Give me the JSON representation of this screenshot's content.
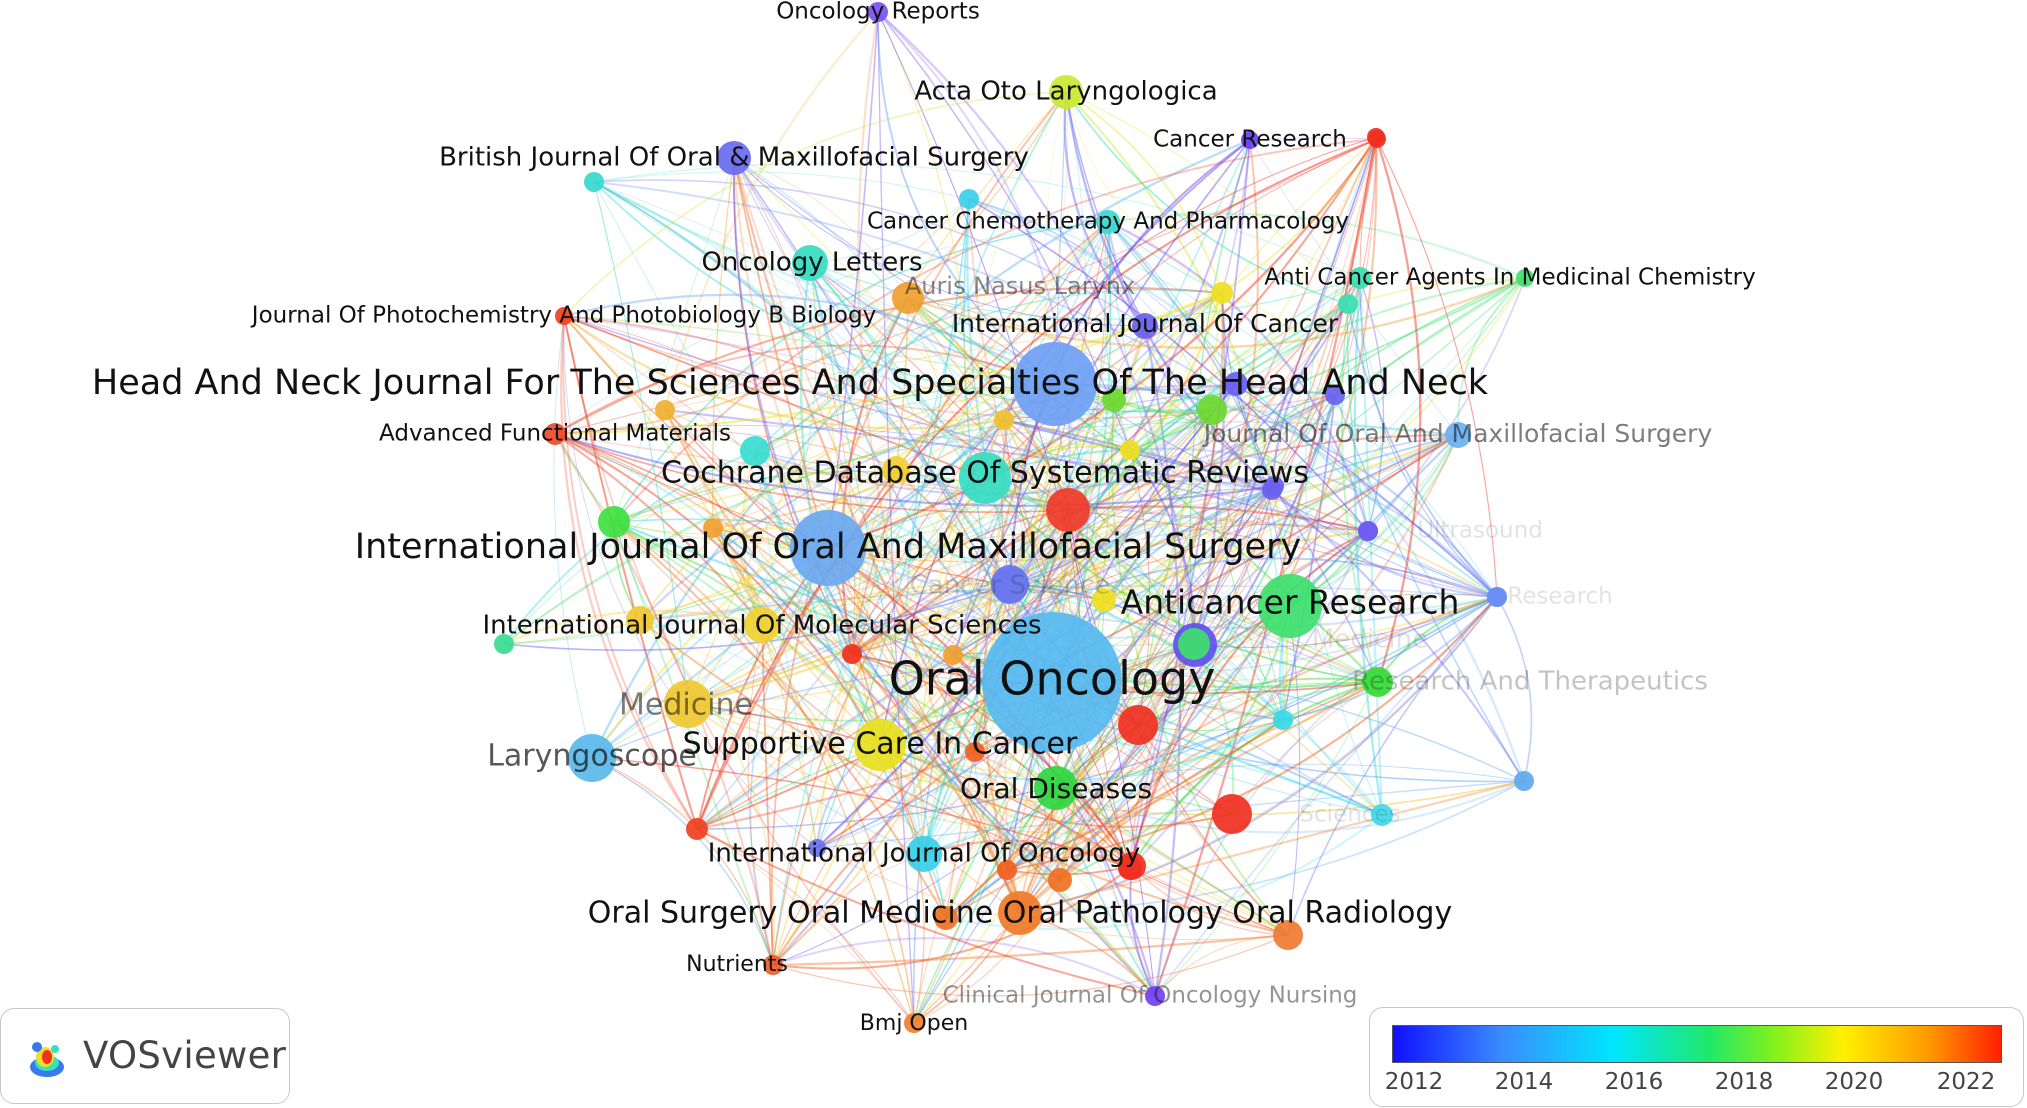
{
  "software": "VOSviewer",
  "color_scale": {
    "ticks": [
      "2012",
      "2014",
      "2016",
      "2018",
      "2020",
      "2022"
    ],
    "colors": [
      "#1010ff",
      "#3a8cff",
      "#00e5ff",
      "#20e86a",
      "#7cf020",
      "#fff000",
      "#ff9a00",
      "#ff2000"
    ]
  },
  "nodes": [
    {
      "label": "Oral Oncology",
      "weight": 3,
      "color": "#56b8f0",
      "year": 2014
    },
    {
      "label": "Head And Neck Journal For The Sciences And Specialties Of The Head And Neck",
      "weight": 3,
      "color": "#6ea0f4",
      "year": 2013
    },
    {
      "label": "International Journal Of Oral And Maxillofacial Surgery",
      "weight": 3,
      "color": "#6aa8f0",
      "year": 2013
    },
    {
      "label": "Anticancer Research",
      "weight": 3,
      "color": "#3ee06e",
      "year": 2017
    },
    {
      "label": "Cochrane Database Of Systematic Reviews",
      "weight": 2,
      "color": "#36dcc2",
      "year": 2016
    },
    {
      "label": "Oral Surgery Oral Medicine Oral Pathology Oral Radiology",
      "weight": 2,
      "color": "#f07a28",
      "year": 2021
    },
    {
      "label": "Supportive Care In Cancer",
      "weight": 2,
      "color": "#e8e020",
      "year": 2019
    },
    {
      "label": "Oral Diseases",
      "weight": 2,
      "color": "#30d640",
      "year": 2017
    },
    {
      "label": "Laryngoscope",
      "weight": 2,
      "color": "#5ab8ec",
      "year": 2014
    },
    {
      "label": "Medicine",
      "weight": 2,
      "color": "#f0c830",
      "year": 2020
    },
    {
      "label": "International Journal Of Molecular Sciences",
      "weight": 2,
      "color": "#f0d030",
      "year": 2020
    },
    {
      "label": "International Journal Of Oncology",
      "weight": 1,
      "color": "#36d0e8",
      "year": 2015
    },
    {
      "label": "Oncology Letters",
      "weight": 1,
      "color": "#36dcc0",
      "year": 2016
    },
    {
      "label": "British Journal Of Oral & Maxillofacial Surgery",
      "weight": 1,
      "color": "#6a6af0",
      "year": 2012
    },
    {
      "label": "Acta Oto Laryngologica",
      "weight": 1,
      "color": "#cbe830",
      "year": 2019
    },
    {
      "label": "Oncology Reports",
      "weight": 1,
      "color": "#7a50f0",
      "year": 2012
    },
    {
      "label": "Cancer Research",
      "weight": 1,
      "color": "#6a40ee",
      "year": 2012
    },
    {
      "label": "Cancer Chemotherapy And Pharmacology",
      "weight": 1,
      "color": "#38d8d0",
      "year": 2015
    },
    {
      "label": "Anti Cancer Agents In Medicinal Chemistry",
      "weight": 1,
      "color": "#38e0b0",
      "year": 2016
    },
    {
      "label": "Journal Of Photochemistry And Photobiology B Biology",
      "weight": 1,
      "color": "#f04020",
      "year": 2022
    },
    {
      "label": "Auris Nasus Larynx",
      "weight": 1,
      "color": "#f0a030",
      "year": 2020
    },
    {
      "label": "International Journal Of Cancer",
      "weight": 1,
      "color": "#6a60ee",
      "year": 2012
    },
    {
      "label": "Advanced Functional Materials",
      "weight": 1,
      "color": "#f04a28",
      "year": 2022
    },
    {
      "label": "Journal Of Oral And Maxillofacial Surgery",
      "weight": 1,
      "color": "#6ab0f0",
      "year": 2013
    },
    {
      "label": "Cancer Science",
      "weight": 1,
      "color": "#6a78ee",
      "year": 2013
    },
    {
      "label": "Nutrients",
      "weight": 1,
      "color": "#f05a28",
      "year": 2022
    },
    {
      "label": "Bmj Open",
      "weight": 1,
      "color": "#f08030",
      "year": 2021
    },
    {
      "label": "Clinical Journal Of Oncology Nursing",
      "weight": 1,
      "color": "#7040f0",
      "year": 2012
    },
    {
      "label": "Ultrasound",
      "weight": 1,
      "color": "#7060f0",
      "year": 2012
    },
    {
      "label": "Research",
      "weight": 1,
      "color": "#6a90f4",
      "year": 2013
    },
    {
      "label": "Medicine",
      "weight": 1,
      "color": "#3ee06e",
      "year": 2017
    },
    {
      "label": "Research And Therapeutics",
      "weight": 1,
      "color": "#40dc40",
      "year": 2017
    },
    {
      "label": "Sciences",
      "weight": 1,
      "color": "#40d8e8",
      "year": 2015
    }
  ]
}
